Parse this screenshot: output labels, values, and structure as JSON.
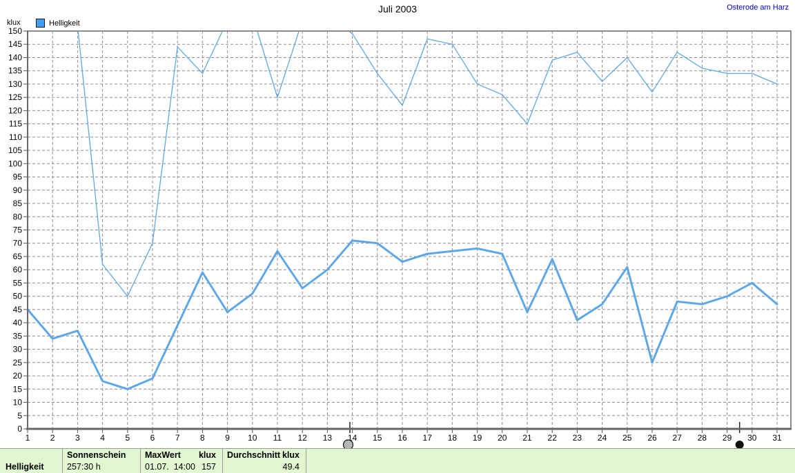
{
  "window": {
    "title": "Juli 2003",
    "location": "Osterode am Harz"
  },
  "y_axis": {
    "unit": "klux"
  },
  "legend": {
    "label": "Helligkeit"
  },
  "colors": {
    "line": "#5ea7e7",
    "legend_fill": "#3f9ff5",
    "location_text": "#0000cc",
    "footer_bg": "#e3f6d2",
    "grid": "#8c8c8c",
    "axis": "#666666"
  },
  "chart_data": {
    "type": "line",
    "title": "Juli 2003",
    "ylabel": "klux",
    "xlabel": "",
    "ylim": [
      0,
      150
    ],
    "y_step": 5,
    "grid": true,
    "legend_position": "top-left",
    "note": "upper line values above 150 klux are clipped by the chart frame",
    "x": [
      1,
      2,
      3,
      4,
      5,
      6,
      7,
      8,
      9,
      10,
      11,
      12,
      13,
      14,
      15,
      16,
      17,
      18,
      19,
      20,
      21,
      22,
      23,
      24,
      25,
      26,
      27,
      28,
      29,
      30,
      31
    ],
    "series": [
      {
        "name": "upper",
        "values": [
          157,
          158,
          152,
          62,
          50,
          70,
          144,
          134,
          154,
          156,
          125,
          154,
          155,
          149,
          134,
          122,
          147,
          145,
          130,
          126,
          115,
          139,
          142,
          131,
          140,
          127,
          142,
          136,
          134,
          134,
          130
        ]
      },
      {
        "name": "lower",
        "values": [
          45,
          34,
          37,
          18,
          15,
          19,
          39,
          59,
          44,
          51,
          67,
          53,
          60,
          71,
          70,
          63,
          66,
          67,
          68,
          66,
          44,
          64,
          41,
          47,
          61,
          25,
          48,
          47,
          50,
          55,
          47
        ]
      }
    ],
    "markers": [
      {
        "symbol": "full-moon",
        "day": 13.9
      },
      {
        "symbol": "new-moon",
        "day": 29.5
      }
    ]
  },
  "footer": {
    "row_label": "Helligkeit",
    "sonnenschein": {
      "header": "Sonnenschein",
      "value": "257:30 h"
    },
    "maxwert": {
      "header": "MaxWert",
      "unit": "klux",
      "datetime": "01.07.  14:00",
      "value": "157"
    },
    "durchschnitt": {
      "header": "Durchschnitt",
      "unit": "klux",
      "value": "49.4"
    }
  }
}
